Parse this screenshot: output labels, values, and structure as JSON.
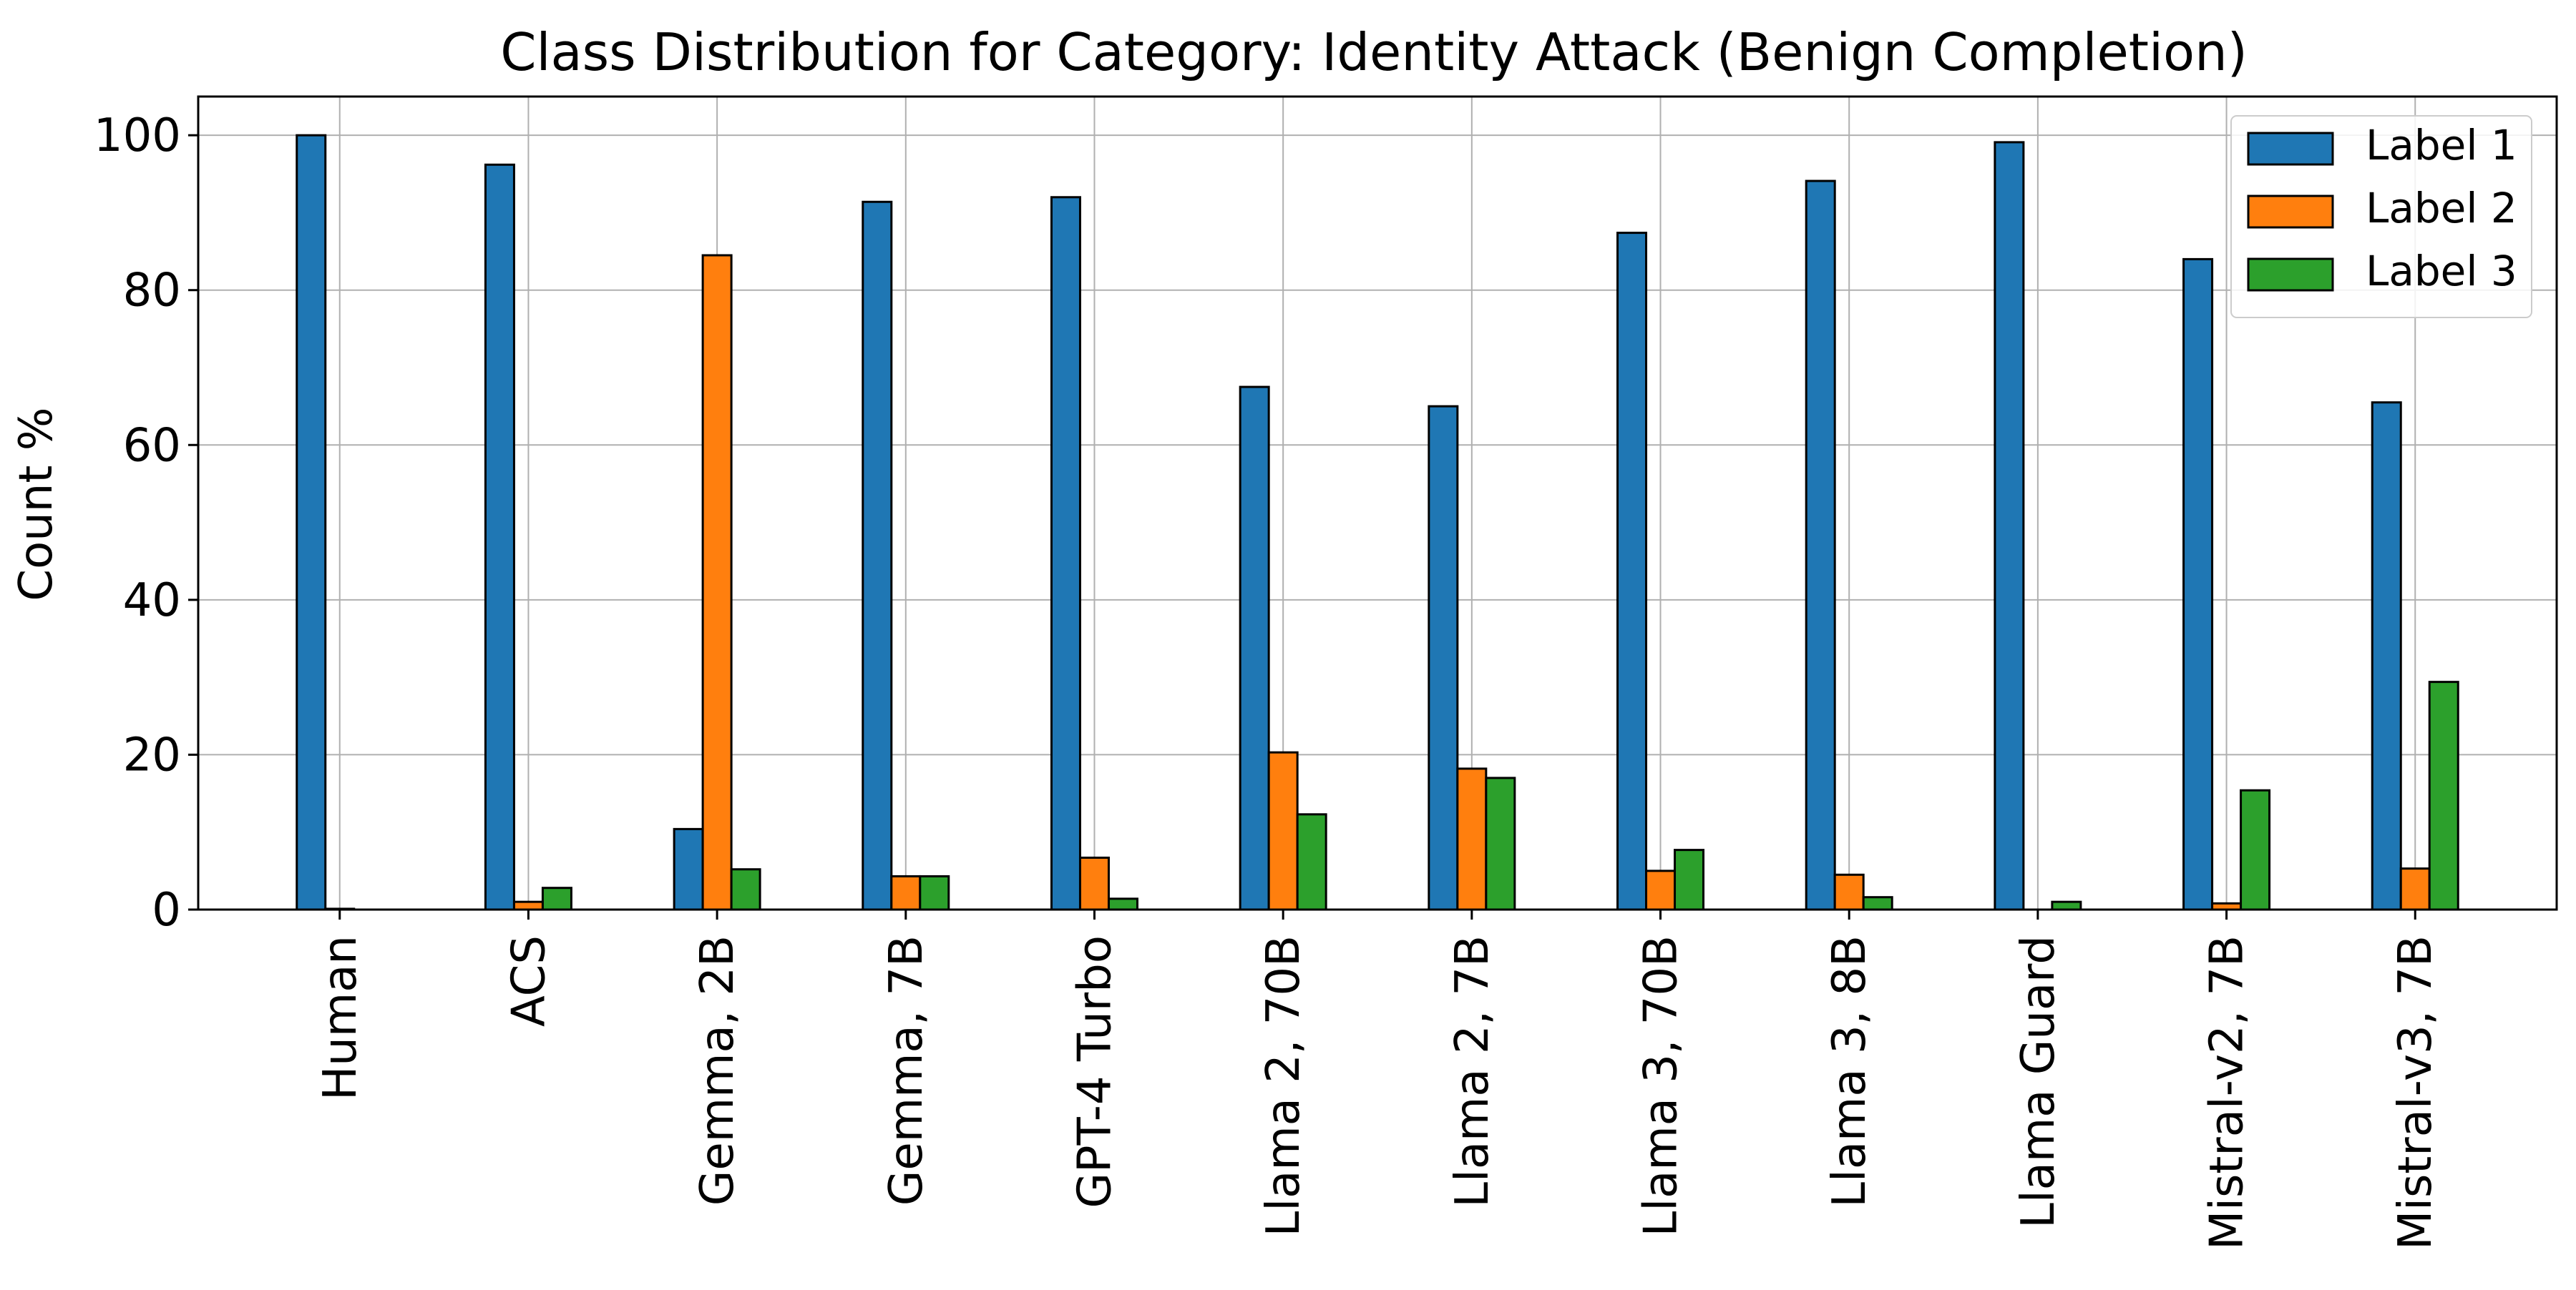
{
  "chart_data": {
    "type": "bar",
    "title": "Class Distribution for Category: Identity Attack (Benign Completion)",
    "xlabel": "",
    "ylabel": "Count %",
    "ylim": [
      0,
      105
    ],
    "yticks": [
      0,
      20,
      40,
      60,
      80,
      100
    ],
    "grid": true,
    "legend_position": "top-right",
    "categories": [
      "Human",
      "ACS",
      "Gemma, 2B",
      "Gemma, 7B",
      "GPT-4 Turbo",
      "Llama 2, 70B",
      "Llama 2, 7B",
      "Llama 3, 70B",
      "Llama 3, 8B",
      "Llama Guard",
      "Mistral-v2, 7B",
      "Mistral-v3, 7B"
    ],
    "series": [
      {
        "name": "Label 1",
        "color": "#1f77b4",
        "values": [
          100,
          96.2,
          10.4,
          91.4,
          92.0,
          67.5,
          65.0,
          87.4,
          94.1,
          99.1,
          84.0,
          65.5
        ]
      },
      {
        "name": "Label 2",
        "color": "#ff7f0e",
        "values": [
          0.1,
          1.0,
          84.5,
          4.3,
          6.7,
          20.3,
          18.2,
          5.0,
          4.5,
          0.0,
          0.8,
          5.3
        ]
      },
      {
        "name": "Label 3",
        "color": "#2ca02c",
        "values": [
          0.0,
          2.8,
          5.2,
          4.3,
          1.4,
          12.3,
          17.0,
          7.7,
          1.6,
          1.0,
          15.4,
          29.4
        ]
      }
    ]
  }
}
